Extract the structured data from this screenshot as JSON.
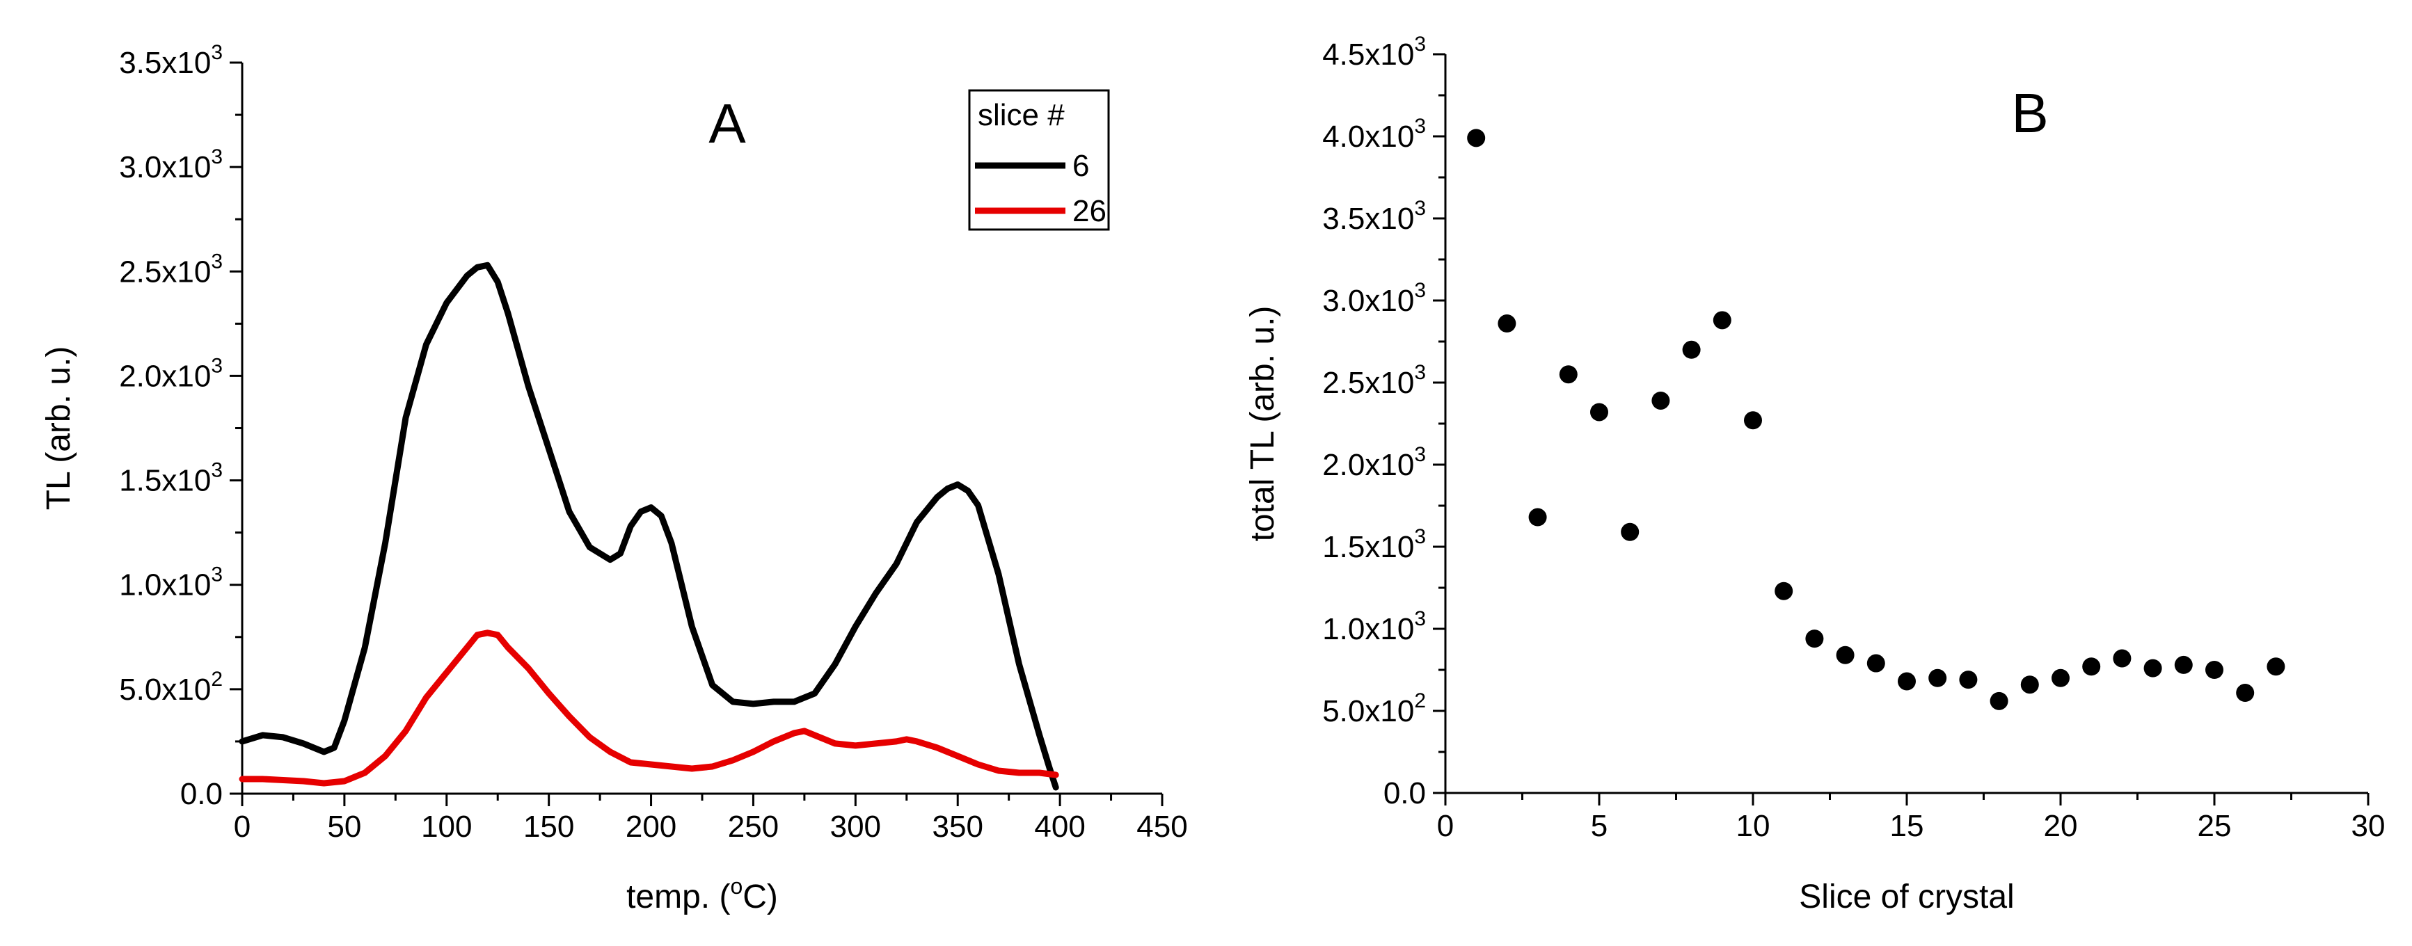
{
  "chart_data": [
    {
      "panel_label": "A",
      "type": "line",
      "xlabel": "temp. (",
      "xlabel_sup": "o",
      "xlabel_tail": "C)",
      "ylabel": "TL (arb. u.)",
      "xlim": [
        0,
        450
      ],
      "ylim": [
        0,
        3500
      ],
      "x_ticks": [
        0,
        50,
        100,
        150,
        200,
        250,
        300,
        350,
        400,
        450
      ],
      "x_tick_labels": [
        "0",
        "50",
        "100",
        "150",
        "200",
        "250",
        "300",
        "350",
        "400",
        "450"
      ],
      "y_ticks": [
        0,
        500,
        1000,
        1500,
        2000,
        2500,
        3000,
        3500
      ],
      "y_tick_labels": [
        {
          "mant": "0.0",
          "exp": ""
        },
        {
          "mant": "5.0x10",
          "exp": "2"
        },
        {
          "mant": "1.0x10",
          "exp": "3"
        },
        {
          "mant": "1.5x10",
          "exp": "3"
        },
        {
          "mant": "2.0x10",
          "exp": "3"
        },
        {
          "mant": "2.5x10",
          "exp": "3"
        },
        {
          "mant": "3.0x10",
          "exp": "3"
        },
        {
          "mant": "3.5x10",
          "exp": "3"
        }
      ],
      "legend_title": "slice #",
      "series": [
        {
          "name": "6",
          "color": "#000000",
          "x": [
            0,
            10,
            20,
            30,
            40,
            45,
            50,
            60,
            70,
            80,
            90,
            100,
            110,
            115,
            120,
            125,
            130,
            140,
            150,
            160,
            170,
            180,
            185,
            190,
            195,
            200,
            205,
            210,
            220,
            230,
            240,
            250,
            260,
            270,
            280,
            290,
            300,
            310,
            320,
            330,
            340,
            345,
            350,
            355,
            360,
            370,
            380,
            390,
            395,
            398
          ],
          "y": [
            250,
            280,
            270,
            240,
            200,
            220,
            350,
            700,
            1200,
            1800,
            2150,
            2350,
            2480,
            2520,
            2530,
            2450,
            2300,
            1950,
            1650,
            1350,
            1180,
            1120,
            1150,
            1280,
            1350,
            1370,
            1330,
            1200,
            800,
            520,
            440,
            430,
            440,
            440,
            480,
            620,
            800,
            960,
            1100,
            1300,
            1420,
            1460,
            1480,
            1450,
            1380,
            1050,
            620,
            280,
            120,
            30
          ]
        },
        {
          "name": "26",
          "color": "#e60000",
          "x": [
            0,
            10,
            20,
            30,
            40,
            50,
            60,
            70,
            80,
            90,
            100,
            110,
            115,
            120,
            125,
            130,
            140,
            150,
            160,
            170,
            180,
            190,
            200,
            210,
            220,
            230,
            240,
            250,
            260,
            270,
            275,
            280,
            290,
            300,
            310,
            320,
            325,
            330,
            340,
            350,
            360,
            370,
            380,
            390,
            398
          ],
          "y": [
            70,
            70,
            65,
            60,
            50,
            60,
            100,
            180,
            300,
            460,
            580,
            700,
            760,
            770,
            760,
            700,
            600,
            480,
            370,
            270,
            200,
            150,
            140,
            130,
            120,
            130,
            160,
            200,
            250,
            290,
            300,
            280,
            240,
            230,
            240,
            250,
            260,
            250,
            220,
            180,
            140,
            110,
            100,
            100,
            90
          ]
        }
      ]
    },
    {
      "panel_label": "B",
      "type": "scatter",
      "xlabel": "Slice of crystal",
      "ylabel": "total TL (arb. u.)",
      "xlim": [
        0,
        30
      ],
      "ylim": [
        0,
        4500
      ],
      "x_ticks": [
        0,
        5,
        10,
        15,
        20,
        25,
        30
      ],
      "x_tick_labels": [
        "0",
        "5",
        "10",
        "15",
        "20",
        "25",
        "30"
      ],
      "y_ticks": [
        0,
        500,
        1000,
        1500,
        2000,
        2500,
        3000,
        3500,
        4000,
        4500
      ],
      "y_tick_labels": [
        {
          "mant": "0.0",
          "exp": ""
        },
        {
          "mant": "5.0x10",
          "exp": "2"
        },
        {
          "mant": "1.0x10",
          "exp": "3"
        },
        {
          "mant": "1.5x10",
          "exp": "3"
        },
        {
          "mant": "2.0x10",
          "exp": "3"
        },
        {
          "mant": "2.5x10",
          "exp": "3"
        },
        {
          "mant": "3.0x10",
          "exp": "3"
        },
        {
          "mant": "3.5x10",
          "exp": "3"
        },
        {
          "mant": "4.0x10",
          "exp": "3"
        },
        {
          "mant": "4.5x10",
          "exp": "3"
        }
      ],
      "series": [
        {
          "name": "total TL",
          "color": "#000000",
          "x": [
            1,
            2,
            3,
            4,
            5,
            6,
            7,
            8,
            9,
            10,
            11,
            12,
            13,
            14,
            15,
            16,
            17,
            18,
            19,
            20,
            21,
            22,
            23,
            24,
            25,
            26,
            27
          ],
          "y": [
            3990,
            2860,
            1680,
            2550,
            2320,
            1590,
            2390,
            2700,
            2880,
            2270,
            1230,
            940,
            840,
            790,
            680,
            700,
            690,
            560,
            660,
            700,
            770,
            820,
            760,
            780,
            750,
            610,
            770
          ]
        }
      ]
    }
  ]
}
